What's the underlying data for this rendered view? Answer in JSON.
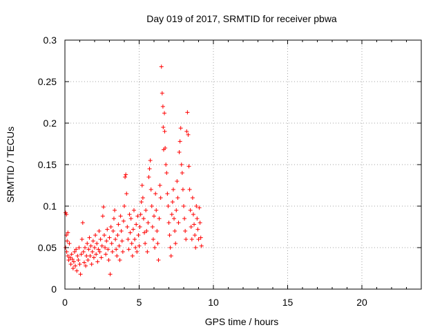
{
  "chart_data": {
    "type": "scatter",
    "title": "Day 019 of 2017, SRMTID for receiver pbwa",
    "xlabel": "GPS time / hours",
    "ylabel": "SRMTID / TECUs",
    "xlim": [
      0,
      24
    ],
    "ylim": [
      0,
      0.3
    ],
    "xticks": [
      0,
      5,
      10,
      15,
      20
    ],
    "xtick_labels": [
      "0",
      "5",
      "10",
      "15",
      "20"
    ],
    "yticks": [
      0,
      0.05,
      0.1,
      0.15,
      0.2,
      0.25,
      0.3
    ],
    "ytick_labels": [
      "0",
      "0.05",
      "0.1",
      "0.15",
      "0.2",
      "0.25",
      "0.3"
    ],
    "grid": true,
    "marker": "+",
    "color": "#ff0000",
    "series": [
      {
        "name": "SRMTID",
        "points": [
          [
            0.05,
            0.092
          ],
          [
            0.1,
            0.09
          ],
          [
            0.1,
            0.065
          ],
          [
            0.15,
            0.058
          ],
          [
            0.2,
            0.068
          ],
          [
            0.05,
            0.05
          ],
          [
            0.12,
            0.045
          ],
          [
            0.2,
            0.04
          ],
          [
            0.25,
            0.035
          ],
          [
            0.3,
            0.055
          ],
          [
            0.35,
            0.038
          ],
          [
            0.4,
            0.03
          ],
          [
            0.45,
            0.042
          ],
          [
            0.5,
            0.036
          ],
          [
            0.55,
            0.025
          ],
          [
            0.6,
            0.033
          ],
          [
            0.65,
            0.045
          ],
          [
            0.7,
            0.028
          ],
          [
            0.75,
            0.048
          ],
          [
            0.8,
            0.022
          ],
          [
            0.85,
            0.04
          ],
          [
            0.9,
            0.035
          ],
          [
            0.95,
            0.05
          ],
          [
            1.0,
            0.03
          ],
          [
            1.05,
            0.018
          ],
          [
            1.1,
            0.042
          ],
          [
            1.15,
            0.06
          ],
          [
            1.2,
            0.08
          ],
          [
            1.25,
            0.045
          ],
          [
            1.3,
            0.032
          ],
          [
            1.35,
            0.05
          ],
          [
            1.4,
            0.028
          ],
          [
            1.45,
            0.04
          ],
          [
            1.5,
            0.055
          ],
          [
            1.55,
            0.035
          ],
          [
            1.6,
            0.048
          ],
          [
            1.65,
            0.062
          ],
          [
            1.7,
            0.04
          ],
          [
            1.75,
            0.052
          ],
          [
            1.8,
            0.03
          ],
          [
            1.85,
            0.045
          ],
          [
            1.9,
            0.058
          ],
          [
            1.95,
            0.038
          ],
          [
            2.0,
            0.05
          ],
          [
            2.05,
            0.065
          ],
          [
            2.1,
            0.042
          ],
          [
            2.15,
            0.055
          ],
          [
            2.2,
            0.033
          ],
          [
            2.25,
            0.048
          ],
          [
            2.3,
            0.07
          ],
          [
            2.35,
            0.045
          ],
          [
            2.4,
            0.06
          ],
          [
            2.45,
            0.038
          ],
          [
            2.5,
            0.052
          ],
          [
            2.55,
            0.088
          ],
          [
            2.6,
            0.099
          ],
          [
            2.65,
            0.065
          ],
          [
            2.7,
            0.05
          ],
          [
            2.75,
            0.042
          ],
          [
            2.8,
            0.058
          ],
          [
            2.85,
            0.072
          ],
          [
            2.9,
            0.048
          ],
          [
            2.95,
            0.035
          ],
          [
            3.0,
            0.062
          ],
          [
            3.05,
            0.018
          ],
          [
            3.1,
            0.075
          ],
          [
            3.15,
            0.055
          ],
          [
            3.2,
            0.045
          ],
          [
            3.25,
            0.07
          ],
          [
            3.3,
            0.085
          ],
          [
            3.35,
            0.095
          ],
          [
            3.4,
            0.06
          ],
          [
            3.45,
            0.048
          ],
          [
            3.5,
            0.04
          ],
          [
            3.55,
            0.065
          ],
          [
            3.6,
            0.078
          ],
          [
            3.65,
            0.052
          ],
          [
            3.7,
            0.035
          ],
          [
            3.75,
            0.088
          ],
          [
            3.8,
            0.07
          ],
          [
            3.85,
            0.058
          ],
          [
            3.9,
            0.045
          ],
          [
            3.95,
            0.082
          ],
          [
            4.0,
            0.1
          ],
          [
            4.05,
            0.135
          ],
          [
            4.1,
            0.138
          ],
          [
            4.15,
            0.115
          ],
          [
            4.2,
            0.075
          ],
          [
            4.25,
            0.06
          ],
          [
            4.3,
            0.048
          ],
          [
            4.35,
            0.09
          ],
          [
            4.4,
            0.068
          ],
          [
            4.45,
            0.085
          ],
          [
            4.5,
            0.055
          ],
          [
            4.55,
            0.04
          ],
          [
            4.6,
            0.072
          ],
          [
            4.65,
            0.095
          ],
          [
            4.7,
            0.06
          ],
          [
            4.75,
            0.05
          ],
          [
            4.8,
            0.078
          ],
          [
            4.85,
            0.045
          ],
          [
            4.9,
            0.088
          ],
          [
            4.95,
            0.065
          ],
          [
            5.0,
            0.052
          ],
          [
            5.05,
            0.075
          ],
          [
            5.1,
            0.09
          ],
          [
            5.15,
            0.105
          ],
          [
            5.2,
            0.125
          ],
          [
            5.25,
            0.11
          ],
          [
            5.3,
            0.085
          ],
          [
            5.35,
            0.068
          ],
          [
            5.4,
            0.055
          ],
          [
            5.45,
            0.095
          ],
          [
            5.5,
            0.07
          ],
          [
            5.55,
            0.045
          ],
          [
            5.6,
            0.08
          ],
          [
            5.65,
            0.135
          ],
          [
            5.7,
            0.145
          ],
          [
            5.75,
            0.155
          ],
          [
            5.8,
            0.12
          ],
          [
            5.85,
            0.1
          ],
          [
            5.9,
            0.075
          ],
          [
            5.95,
            0.06
          ],
          [
            6.0,
            0.088
          ],
          [
            6.05,
            0.05
          ],
          [
            6.1,
            0.115
          ],
          [
            6.15,
            0.095
          ],
          [
            6.2,
            0.07
          ],
          [
            6.25,
            0.055
          ],
          [
            6.3,
            0.035
          ],
          [
            6.35,
            0.085
          ],
          [
            6.4,
            0.125
          ],
          [
            6.45,
            0.11
          ],
          [
            6.5,
            0.268
          ],
          [
            6.55,
            0.236
          ],
          [
            6.6,
            0.22
          ],
          [
            6.62,
            0.195
          ],
          [
            6.65,
            0.168
          ],
          [
            6.7,
            0.212
          ],
          [
            6.72,
            0.19
          ],
          [
            6.75,
            0.17
          ],
          [
            6.8,
            0.15
          ],
          [
            6.85,
            0.14
          ],
          [
            6.9,
            0.115
          ],
          [
            6.95,
            0.1
          ],
          [
            7.0,
            0.08
          ],
          [
            7.05,
            0.065
          ],
          [
            7.1,
            0.05
          ],
          [
            7.15,
            0.04
          ],
          [
            7.2,
            0.09
          ],
          [
            7.25,
            0.105
          ],
          [
            7.3,
            0.12
          ],
          [
            7.35,
            0.085
          ],
          [
            7.4,
            0.07
          ],
          [
            7.45,
            0.055
          ],
          [
            7.5,
            0.095
          ],
          [
            7.55,
            0.13
          ],
          [
            7.6,
            0.11
          ],
          [
            7.65,
            0.08
          ],
          [
            7.7,
            0.165
          ],
          [
            7.75,
            0.178
          ],
          [
            7.8,
            0.194
          ],
          [
            7.85,
            0.15
          ],
          [
            7.9,
            0.14
          ],
          [
            7.95,
            0.12
          ],
          [
            8.0,
            0.1
          ],
          [
            8.05,
            0.085
          ],
          [
            8.1,
            0.07
          ],
          [
            8.15,
            0.06
          ],
          [
            8.2,
            0.19
          ],
          [
            8.25,
            0.213
          ],
          [
            8.3,
            0.186
          ],
          [
            8.35,
            0.148
          ],
          [
            8.4,
            0.12
          ],
          [
            8.45,
            0.095
          ],
          [
            8.5,
            0.075
          ],
          [
            8.55,
            0.06
          ],
          [
            8.6,
            0.11
          ],
          [
            8.65,
            0.09
          ],
          [
            8.7,
            0.078
          ],
          [
            8.75,
            0.065
          ],
          [
            8.8,
            0.05
          ],
          [
            8.85,
            0.1
          ],
          [
            8.9,
            0.085
          ],
          [
            8.95,
            0.072
          ],
          [
            9.0,
            0.06
          ],
          [
            9.05,
            0.098
          ],
          [
            9.1,
            0.08
          ],
          [
            9.15,
            0.062
          ],
          [
            9.2,
            0.052
          ]
        ]
      }
    ]
  }
}
